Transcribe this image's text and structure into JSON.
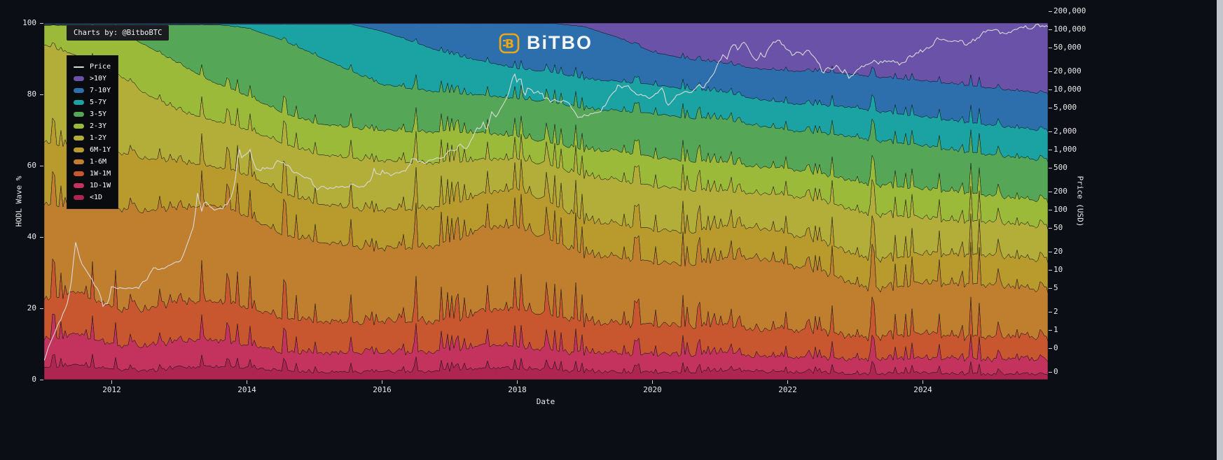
{
  "page": {
    "background": "#0b0e14",
    "scrollbar_color": "#c3c7cd"
  },
  "watermark": {
    "label": "Charts by: @BitboBTC"
  },
  "logo": {
    "text": "BiTBO",
    "symbol": "B",
    "accent": "#eda712"
  },
  "chart_data": {
    "type": "area",
    "stacked": true,
    "xlabel": "Date",
    "ylabel_left": "HODL Wave %",
    "ylabel_right": "Price (USD)",
    "x_range": [
      2011.0,
      2025.85
    ],
    "x_ticks": [
      2012,
      2014,
      2016,
      2018,
      2020,
      2022,
      2024
    ],
    "y_left_ticks": [
      0,
      20,
      40,
      60,
      80,
      100
    ],
    "y_left_range": [
      0,
      100
    ],
    "grid": false,
    "legend_position": "top-left",
    "series_order": "bottom-up",
    "price_axis": {
      "scale": "log",
      "value_at_top": 127000,
      "value_at_bottom": 0.148,
      "ticks": [
        {
          "value": 200000,
          "label": "200,000"
        },
        {
          "value": 100000,
          "label": "100,000"
        },
        {
          "value": 50000,
          "label": "50,000"
        },
        {
          "value": 20000,
          "label": "20,000"
        },
        {
          "value": 10000,
          "label": "10,000"
        },
        {
          "value": 5000,
          "label": "5,000"
        },
        {
          "value": 2000,
          "label": "2,000"
        },
        {
          "value": 1000,
          "label": "1,000"
        },
        {
          "value": 500,
          "label": "500"
        },
        {
          "value": 200,
          "label": "200"
        },
        {
          "value": 100,
          "label": "100"
        },
        {
          "value": 50,
          "label": "50"
        },
        {
          "value": 20,
          "label": "20"
        },
        {
          "value": 10,
          "label": "10"
        },
        {
          "value": 5,
          "label": "5"
        },
        {
          "value": 2,
          "label": "2"
        },
        {
          "value": 1,
          "label": "1"
        },
        {
          "value": 0.5,
          "label": "0"
        },
        {
          "value": 0.2,
          "label": "0"
        }
      ]
    },
    "x": [
      2011.0,
      2011.5,
      2012.0,
      2012.5,
      2013.0,
      2013.5,
      2014.0,
      2014.5,
      2015.0,
      2015.5,
      2016.0,
      2016.5,
      2017.0,
      2017.5,
      2018.0,
      2018.5,
      2019.0,
      2019.5,
      2020.0,
      2020.5,
      2021.0,
      2021.5,
      2022.0,
      2022.5,
      2023.0,
      2023.5,
      2024.0,
      2024.5,
      2025.0,
      2025.5,
      2025.85
    ],
    "series": [
      {
        "name": "<1D",
        "color": "#ad2550",
        "noise": 0.9,
        "values": [
          3,
          4,
          2.5,
          2,
          3,
          3.5,
          3,
          2.5,
          2,
          2,
          2,
          2,
          2.5,
          3,
          3,
          2.5,
          2,
          2,
          2,
          2,
          2.5,
          2,
          2,
          2,
          1.5,
          1.5,
          2,
          1.5,
          1.5,
          1.5,
          1.5
        ]
      },
      {
        "name": "1D-1W",
        "color": "#c4335e",
        "noise": 1.1,
        "values": [
          7,
          8,
          6,
          6,
          7,
          7,
          6,
          5,
          5,
          5,
          5,
          5,
          5,
          6,
          6,
          5,
          5,
          5,
          5,
          5,
          5,
          4,
          4,
          4,
          4,
          4,
          4,
          4,
          4,
          4,
          4
        ]
      },
      {
        "name": "1W-1M",
        "color": "#c8572f",
        "noise": 1.4,
        "values": [
          10,
          11,
          9,
          9,
          10,
          10,
          10,
          9,
          8,
          8,
          8,
          8,
          8,
          9,
          10,
          9,
          8,
          8,
          8,
          8,
          8,
          7,
          7,
          7,
          6,
          6,
          7,
          6,
          6,
          6,
          6
        ]
      },
      {
        "name": "1-6M",
        "color": "#c07f2e",
        "noise": 0.9,
        "values": [
          24,
          23,
          25,
          24,
          24,
          25,
          24,
          22,
          21,
          20,
          19,
          19,
          20,
          22,
          22,
          20,
          18,
          18,
          17,
          17,
          18,
          19,
          17,
          16,
          14,
          13,
          14,
          14,
          14,
          13,
          13
        ]
      },
      {
        "name": "6M-1Y",
        "color": "#b89a2d",
        "noise": 0.3,
        "values": [
          16,
          15,
          14,
          13,
          12,
          10,
          11,
          11,
          10,
          10,
          10,
          10,
          10,
          9,
          10,
          10,
          9,
          9,
          9,
          9,
          9,
          8,
          8,
          8,
          8,
          8,
          8,
          8,
          8,
          8,
          8
        ]
      },
      {
        "name": "1-2Y",
        "color": "#b3ad39",
        "noise": 0,
        "values": [
          25,
          24,
          20,
          16,
          13,
          12,
          12,
          13,
          13,
          13,
          13,
          12,
          11,
          9,
          8,
          10,
          12,
          12,
          12,
          12,
          10,
          9,
          10,
          11,
          12,
          12,
          10,
          9,
          9,
          9,
          9
        ]
      },
      {
        "name": "2-3Y",
        "color": "#9cba3a",
        "noise": 0,
        "values": [
          5,
          8,
          10,
          12,
          12,
          10,
          9,
          8,
          8,
          8,
          8,
          8,
          8,
          7,
          6,
          6,
          7,
          8,
          8,
          8,
          8,
          7,
          7,
          7,
          8,
          8,
          8,
          8,
          7,
          7,
          7
        ]
      },
      {
        "name": "3-5Y",
        "color": "#55a757",
        "noise": 0,
        "values": [
          0,
          0,
          1,
          5,
          10,
          15,
          18,
          19,
          18,
          15,
          12,
          11,
          10,
          10,
          10,
          11,
          11,
          11,
          12,
          12,
          12,
          11,
          10,
          11,
          12,
          12,
          12,
          11,
          11,
          11,
          11
        ]
      },
      {
        "name": "5-7Y",
        "color": "#1ba3a3",
        "noise": 0,
        "values": [
          0,
          0,
          0,
          0,
          0,
          0,
          1,
          4,
          8,
          12,
          14,
          12,
          10,
          9,
          8,
          8,
          8,
          8,
          8,
          8,
          7.5,
          7,
          7,
          7.5,
          8,
          8,
          8,
          8,
          8,
          8,
          8
        ]
      },
      {
        "name": "7-10Y",
        "color": "#2d6fad",
        "noise": 0,
        "values": [
          0,
          0,
          0,
          0,
          0,
          0,
          0,
          0,
          0,
          0,
          2,
          5,
          8,
          10,
          12,
          13,
          14,
          12,
          9,
          8.5,
          8,
          8,
          8.5,
          9,
          9,
          9.5,
          10,
          10,
          10,
          10,
          10
        ]
      },
      {
        "name": ">10Y",
        "color": "#6a52a8",
        "noise": 0,
        "values": [
          0,
          0,
          0,
          0,
          0,
          0,
          0,
          0,
          0,
          0,
          0,
          0,
          0,
          0,
          0,
          0,
          1,
          4,
          8,
          10,
          11,
          12,
          12.5,
          13,
          14,
          15,
          16,
          16.5,
          17.5,
          18.5,
          19
        ]
      }
    ],
    "price_series": {
      "name": "Price",
      "color": "#d9d9d9",
      "points": [
        [
          2011.0,
          0.3
        ],
        [
          2011.12,
          0.75
        ],
        [
          2011.25,
          1.5
        ],
        [
          2011.35,
          3
        ],
        [
          2011.42,
          8.5
        ],
        [
          2011.46,
          31
        ],
        [
          2011.52,
          17
        ],
        [
          2011.58,
          11
        ],
        [
          2011.68,
          7.5
        ],
        [
          2011.8,
          4.6
        ],
        [
          2011.88,
          2.4
        ],
        [
          2011.95,
          3
        ],
        [
          2012.0,
          5.3
        ],
        [
          2012.1,
          4.9
        ],
        [
          2012.25,
          5
        ],
        [
          2012.4,
          5.1
        ],
        [
          2012.5,
          6.6
        ],
        [
          2012.58,
          9
        ],
        [
          2012.62,
          11.2
        ],
        [
          2012.7,
          10.2
        ],
        [
          2012.8,
          11
        ],
        [
          2012.9,
          12.6
        ],
        [
          2013.0,
          13.4
        ],
        [
          2013.08,
          20
        ],
        [
          2013.15,
          33
        ],
        [
          2013.2,
          47
        ],
        [
          2013.24,
          95
        ],
        [
          2013.28,
          230
        ],
        [
          2013.32,
          77
        ],
        [
          2013.37,
          140
        ],
        [
          2013.45,
          117
        ],
        [
          2013.55,
          97
        ],
        [
          2013.65,
          110
        ],
        [
          2013.75,
          140
        ],
        [
          2013.82,
          250
        ],
        [
          2013.88,
          1130
        ],
        [
          2013.92,
          700
        ],
        [
          2013.96,
          760
        ],
        [
          2014.0,
          840
        ],
        [
          2014.05,
          950
        ],
        [
          2014.1,
          620
        ],
        [
          2014.16,
          440
        ],
        [
          2014.25,
          500
        ],
        [
          2014.35,
          450
        ],
        [
          2014.45,
          630
        ],
        [
          2014.55,
          580
        ],
        [
          2014.65,
          480
        ],
        [
          2014.75,
          380
        ],
        [
          2014.85,
          350
        ],
        [
          2014.95,
          320
        ],
        [
          2015.02,
          215
        ],
        [
          2015.1,
          245
        ],
        [
          2015.18,
          220
        ],
        [
          2015.3,
          235
        ],
        [
          2015.45,
          230
        ],
        [
          2015.55,
          265
        ],
        [
          2015.65,
          230
        ],
        [
          2015.75,
          260
        ],
        [
          2015.83,
          310
        ],
        [
          2015.88,
          460
        ],
        [
          2015.93,
          360
        ],
        [
          2016.0,
          430
        ],
        [
          2016.1,
          375
        ],
        [
          2016.2,
          415
        ],
        [
          2016.35,
          455
        ],
        [
          2016.45,
          700
        ],
        [
          2016.5,
          670
        ],
        [
          2016.6,
          600
        ],
        [
          2016.7,
          630
        ],
        [
          2016.8,
          710
        ],
        [
          2016.9,
          740
        ],
        [
          2017.0,
          995
        ],
        [
          2017.05,
          890
        ],
        [
          2017.15,
          1200
        ],
        [
          2017.22,
          1000
        ],
        [
          2017.3,
          1280
        ],
        [
          2017.4,
          2400
        ],
        [
          2017.45,
          2200
        ],
        [
          2017.5,
          2900
        ],
        [
          2017.55,
          2000
        ],
        [
          2017.62,
          4400
        ],
        [
          2017.68,
          3300
        ],
        [
          2017.75,
          4800
        ],
        [
          2017.85,
          7500
        ],
        [
          2017.9,
          11000
        ],
        [
          2017.95,
          19200
        ],
        [
          2018.0,
          13500
        ],
        [
          2018.05,
          16500
        ],
        [
          2018.1,
          7600
        ],
        [
          2018.17,
          11200
        ],
        [
          2018.25,
          8200
        ],
        [
          2018.32,
          9500
        ],
        [
          2018.4,
          7400
        ],
        [
          2018.5,
          6300
        ],
        [
          2018.57,
          6700
        ],
        [
          2018.65,
          6400
        ],
        [
          2018.75,
          6500
        ],
        [
          2018.85,
          4000
        ],
        [
          2018.92,
          3300
        ],
        [
          2019.0,
          3800
        ],
        [
          2019.1,
          3900
        ],
        [
          2019.2,
          4100
        ],
        [
          2019.3,
          5300
        ],
        [
          2019.38,
          8000
        ],
        [
          2019.45,
          9000
        ],
        [
          2019.5,
          12900
        ],
        [
          2019.55,
          10800
        ],
        [
          2019.62,
          11800
        ],
        [
          2019.7,
          9600
        ],
        [
          2019.8,
          8200
        ],
        [
          2019.9,
          7400
        ],
        [
          2020.0,
          7200
        ],
        [
          2020.1,
          9500
        ],
        [
          2020.16,
          10300
        ],
        [
          2020.22,
          4900
        ],
        [
          2020.3,
          6800
        ],
        [
          2020.4,
          8800
        ],
        [
          2020.5,
          9200
        ],
        [
          2020.6,
          9100
        ],
        [
          2020.67,
          11800
        ],
        [
          2020.75,
          10700
        ],
        [
          2020.82,
          13800
        ],
        [
          2020.9,
          18500
        ],
        [
          2020.97,
          27000
        ],
        [
          2021.02,
          33000
        ],
        [
          2021.06,
          40000
        ],
        [
          2021.1,
          31500
        ],
        [
          2021.16,
          48000
        ],
        [
          2021.22,
          57000
        ],
        [
          2021.27,
          45000
        ],
        [
          2021.32,
          59000
        ],
        [
          2021.36,
          63500
        ],
        [
          2021.42,
          49000
        ],
        [
          2021.47,
          36000
        ],
        [
          2021.54,
          31500
        ],
        [
          2021.6,
          39500
        ],
        [
          2021.65,
          33000
        ],
        [
          2021.72,
          46000
        ],
        [
          2021.8,
          62000
        ],
        [
          2021.87,
          67500
        ],
        [
          2021.93,
          53500
        ],
        [
          2022.0,
          47000
        ],
        [
          2022.07,
          36500
        ],
        [
          2022.15,
          44300
        ],
        [
          2022.22,
          39000
        ],
        [
          2022.3,
          45500
        ],
        [
          2022.37,
          38000
        ],
        [
          2022.45,
          29000
        ],
        [
          2022.52,
          19000
        ],
        [
          2022.6,
          22500
        ],
        [
          2022.65,
          20000
        ],
        [
          2022.72,
          24300
        ],
        [
          2022.8,
          19500
        ],
        [
          2022.85,
          20200
        ],
        [
          2022.9,
          15800
        ],
        [
          2022.97,
          16800
        ],
        [
          2023.05,
          22800
        ],
        [
          2023.12,
          24800
        ],
        [
          2023.2,
          27800
        ],
        [
          2023.28,
          30200
        ],
        [
          2023.35,
          26800
        ],
        [
          2023.42,
          29900
        ],
        [
          2023.5,
          30500
        ],
        [
          2023.57,
          29300
        ],
        [
          2023.65,
          25900
        ],
        [
          2023.72,
          27200
        ],
        [
          2023.8,
          34600
        ],
        [
          2023.88,
          37800
        ],
        [
          2023.95,
          43800
        ],
        [
          2024.0,
          42500
        ],
        [
          2024.07,
          48000
        ],
        [
          2024.13,
          52000
        ],
        [
          2024.18,
          61500
        ],
        [
          2024.22,
          70500
        ],
        [
          2024.28,
          64500
        ],
        [
          2024.35,
          67200
        ],
        [
          2024.42,
          63800
        ],
        [
          2024.5,
          60500
        ],
        [
          2024.57,
          65000
        ],
        [
          2024.63,
          54500
        ],
        [
          2024.7,
          63500
        ],
        [
          2024.78,
          68000
        ],
        [
          2024.85,
          76000
        ],
        [
          2024.9,
          91000
        ],
        [
          2024.96,
          98500
        ],
        [
          2025.0,
          93500
        ],
        [
          2025.04,
          104500
        ],
        [
          2025.1,
          96500
        ],
        [
          2025.16,
          84500
        ],
        [
          2025.22,
          82000
        ],
        [
          2025.3,
          87500
        ],
        [
          2025.37,
          94800
        ],
        [
          2025.43,
          103500
        ],
        [
          2025.5,
          111000
        ],
        [
          2025.56,
          105500
        ],
        [
          2025.63,
          108500
        ],
        [
          2025.7,
          118000
        ],
        [
          2025.77,
          115500
        ],
        [
          2025.85,
          112500
        ]
      ]
    }
  }
}
